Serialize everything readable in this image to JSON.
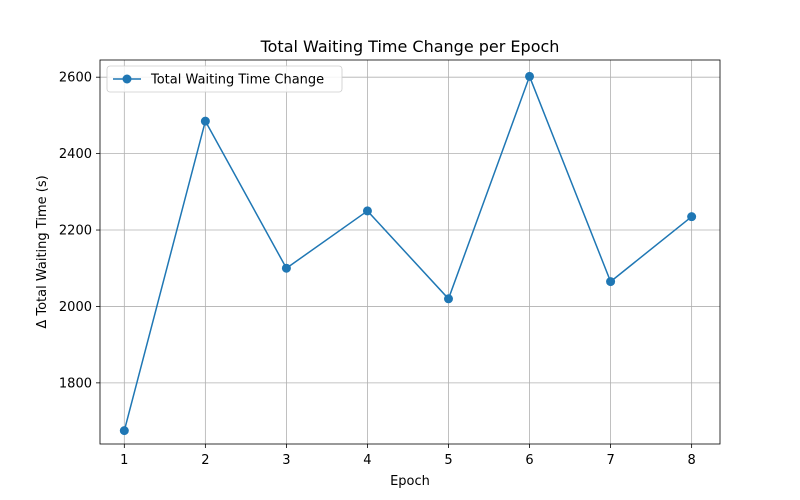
{
  "chart_data": {
    "type": "line",
    "title": "Total Waiting Time Change per Epoch",
    "xlabel": "Epoch",
    "ylabel": "Δ Total Waiting Time (s)",
    "x": [
      1,
      2,
      3,
      4,
      5,
      6,
      7,
      8
    ],
    "x_ticks": [
      "1",
      "2",
      "3",
      "4",
      "5",
      "6",
      "7",
      "8"
    ],
    "y_ticks": [
      "1800",
      "2000",
      "2200",
      "2400",
      "2600"
    ],
    "xlim": [
      0.7,
      8.35
    ],
    "ylim": [
      1640,
      2645
    ],
    "grid": true,
    "legend": "upper-left",
    "series": [
      {
        "name": "Total Waiting Time Change",
        "color": "#1f77b4",
        "marker": "circle",
        "values": [
          1675,
          2485,
          2100,
          2250,
          2020,
          2602,
          2065,
          2235
        ]
      }
    ]
  }
}
